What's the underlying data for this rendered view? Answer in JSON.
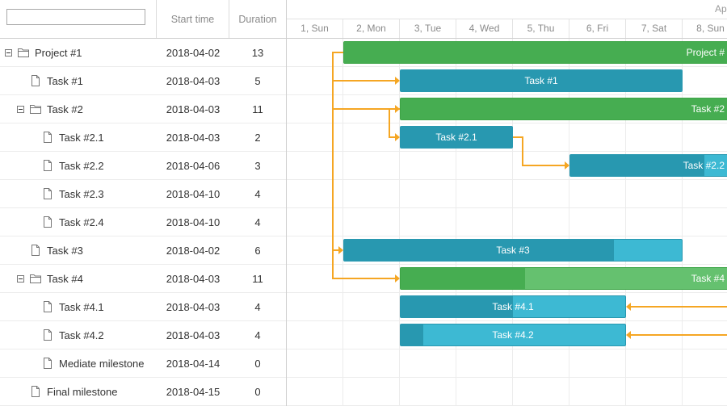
{
  "grid": {
    "search_placeholder": "",
    "col_start": "Start time",
    "col_duration": "Duration"
  },
  "rows": [
    {
      "name": "Project #1",
      "start": "2018-04-02",
      "duration": "13",
      "type": "project",
      "level": 0,
      "icon": "folder-icon",
      "has_toggle": true
    },
    {
      "name": "Task #1",
      "start": "2018-04-03",
      "duration": "5",
      "type": "task",
      "level": 1,
      "icon": "file-icon",
      "has_toggle": false
    },
    {
      "name": "Task #2",
      "start": "2018-04-03",
      "duration": "11",
      "type": "project",
      "level": 1,
      "icon": "folder-icon",
      "has_toggle": true
    },
    {
      "name": "Task #2.1",
      "start": "2018-04-03",
      "duration": "2",
      "type": "task",
      "level": 2,
      "icon": "file-icon",
      "has_toggle": false
    },
    {
      "name": "Task #2.2",
      "start": "2018-04-06",
      "duration": "3",
      "type": "task",
      "level": 2,
      "icon": "file-icon",
      "has_toggle": false
    },
    {
      "name": "Task #2.3",
      "start": "2018-04-10",
      "duration": "4",
      "type": "task",
      "level": 2,
      "icon": "file-icon",
      "has_toggle": false
    },
    {
      "name": "Task #2.4",
      "start": "2018-04-10",
      "duration": "4",
      "type": "task",
      "level": 2,
      "icon": "file-icon",
      "has_toggle": false
    },
    {
      "name": "Task #3",
      "start": "2018-04-02",
      "duration": "6",
      "type": "task",
      "level": 1,
      "icon": "file-icon",
      "has_toggle": false
    },
    {
      "name": "Task #4",
      "start": "2018-04-03",
      "duration": "11",
      "type": "project",
      "level": 1,
      "icon": "folder-icon",
      "has_toggle": true
    },
    {
      "name": "Task #4.1",
      "start": "2018-04-03",
      "duration": "4",
      "type": "task",
      "level": 2,
      "icon": "file-icon",
      "has_toggle": false
    },
    {
      "name": "Task #4.2",
      "start": "2018-04-03",
      "duration": "4",
      "type": "task",
      "level": 2,
      "icon": "file-icon",
      "has_toggle": false
    },
    {
      "name": "Mediate milestone",
      "start": "2018-04-14",
      "duration": "0",
      "type": "milestone",
      "level": 2,
      "icon": "file-icon",
      "has_toggle": false
    },
    {
      "name": "Final milestone",
      "start": "2018-04-15",
      "duration": "0",
      "type": "milestone",
      "level": 1,
      "icon": "file-icon",
      "has_toggle": false
    }
  ],
  "timeline": {
    "month_label": "Ap",
    "days": [
      "1, Sun",
      "2, Mon",
      "3, Tue",
      "4, Wed",
      "5, Thu",
      "6, Fri",
      "7, Sat",
      "8, Sun"
    ]
  },
  "bars": [
    {
      "row": 0,
      "label": "Project #",
      "start_day": 2,
      "days": 13,
      "kind": "project",
      "progress": 1.0
    },
    {
      "row": 1,
      "label": "Task #1",
      "start_day": 3,
      "days": 5,
      "kind": "task",
      "progress": 1.0
    },
    {
      "row": 2,
      "label": "Task #2",
      "start_day": 3,
      "days": 11,
      "kind": "project",
      "progress": 0.88
    },
    {
      "row": 3,
      "label": "Task #2.1",
      "start_day": 3,
      "days": 2,
      "kind": "task",
      "progress": 1.0
    },
    {
      "row": 4,
      "label": "Task #2.2",
      "start_day": 6,
      "days": 3,
      "kind": "task",
      "progress": 0.8
    },
    {
      "row": 7,
      "label": "Task #3",
      "start_day": 2,
      "days": 6,
      "kind": "task",
      "progress": 0.8
    },
    {
      "row": 8,
      "label": "Task #4",
      "start_day": 3,
      "days": 11,
      "kind": "project",
      "progress": 0.2
    },
    {
      "row": 9,
      "label": "Task #4.1",
      "start_day": 3,
      "days": 4,
      "kind": "task",
      "progress": 0.5
    },
    {
      "row": 10,
      "label": "Task #4.2",
      "start_day": 3,
      "days": 4,
      "kind": "task",
      "progress": 0.1
    }
  ],
  "links": [
    {
      "from_row": 0,
      "to_row": 1,
      "type": "start-start"
    },
    {
      "from_row": 0,
      "to_row": 2,
      "type": "start-start"
    },
    {
      "from_row": 2,
      "to_row": 3,
      "type": "start-start"
    },
    {
      "from_row": 3,
      "to_row": 4,
      "type": "finish-start"
    },
    {
      "from_row": 0,
      "to_row": 7,
      "type": "start-start"
    },
    {
      "from_row": 0,
      "to_row": 8,
      "type": "start-start"
    },
    {
      "from_row": 8,
      "to_row": 9,
      "type": "finish-finish"
    },
    {
      "from_row": 8,
      "to_row": 10,
      "type": "finish-finish"
    }
  ],
  "colors": {
    "project_bar": "#65c16f",
    "project_progress": "#46ad51",
    "task_bar": "#3db9d3",
    "task_progress": "#2898b0",
    "link": "#f5a623"
  }
}
